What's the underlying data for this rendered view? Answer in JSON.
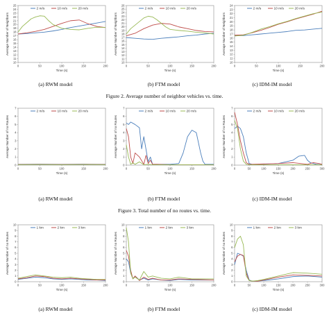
{
  "captions": {
    "fig2": "Figure 2.    Average number of neighbor vehicles vs. time.",
    "fig3": "Figure 3.    Total number of no routes vs. time.",
    "row1": [
      "(a) RWM model",
      "(b) FTM model",
      "(c) IDM-IM model"
    ],
    "row2": [
      "(a) RWM model",
      "(b) FTM model",
      "(c) IDM-IM model"
    ],
    "row3": [
      "(a) RWM model",
      "(b) FTM model",
      "(c) IDM-IM model"
    ]
  },
  "colors": {
    "s1": "#4a7ebb",
    "s2": "#be4b48",
    "s3": "#98b954"
  },
  "chart_data": [
    {
      "id": "r1a",
      "type": "line",
      "xlabel": "Time (s)",
      "ylabel": "Average Number of Neighbors",
      "xlim": [
        0,
        200
      ],
      "ylim": [
        10,
        25
      ],
      "xticks": [
        0,
        50,
        100,
        150,
        200
      ],
      "yticks": [
        10,
        11,
        12,
        13,
        14,
        15,
        16,
        17,
        18,
        19,
        20,
        21,
        22,
        23,
        24,
        25
      ],
      "series": [
        {
          "name": "2 m/s",
          "x": [
            0,
            20,
            40,
            60,
            80,
            100,
            120,
            140,
            160,
            180,
            200
          ],
          "y": [
            17.5,
            17.6,
            17.8,
            18.0,
            18.3,
            18.7,
            19.2,
            19.6,
            20.0,
            20.4,
            20.8
          ]
        },
        {
          "name": "10 m/s",
          "x": [
            0,
            20,
            40,
            60,
            80,
            100,
            120,
            140,
            160,
            180,
            200
          ],
          "y": [
            17.5,
            17.8,
            18.2,
            18.7,
            19.5,
            20.3,
            21.0,
            21.2,
            20.2,
            19.5,
            19.2
          ]
        },
        {
          "name": "20 m/s",
          "x": [
            0,
            10,
            20,
            30,
            40,
            50,
            60,
            70,
            80,
            100,
            120,
            140,
            160,
            180,
            200
          ],
          "y": [
            18.0,
            19.5,
            20.5,
            21.5,
            22.0,
            22.3,
            22.2,
            21.0,
            20.0,
            19.0,
            18.7,
            18.6,
            19.0,
            19.3,
            19.2
          ]
        }
      ]
    },
    {
      "id": "r1b",
      "type": "line",
      "xlabel": "Time (s)",
      "ylabel": "Average Number of Neighbors",
      "xlim": [
        0,
        200
      ],
      "ylim": [
        10,
        26
      ],
      "xticks": [
        0,
        50,
        100,
        150,
        200
      ],
      "yticks": [
        10,
        11,
        12,
        13,
        14,
        15,
        16,
        17,
        18,
        19,
        20,
        21,
        22,
        23,
        24,
        25,
        26
      ],
      "series": [
        {
          "name": "2 m/s",
          "x": [
            0,
            20,
            40,
            60,
            80,
            100,
            120,
            140,
            160,
            180,
            200
          ],
          "y": [
            17.0,
            16.8,
            16.6,
            16.5,
            16.8,
            17.0,
            17.2,
            17.5,
            17.7,
            18.0,
            18.2
          ]
        },
        {
          "name": "10 m/s",
          "x": [
            0,
            20,
            40,
            60,
            80,
            100,
            120,
            140,
            160,
            180,
            200
          ],
          "y": [
            17.5,
            18.2,
            19.5,
            20.5,
            21.0,
            20.8,
            20.0,
            19.5,
            19.0,
            18.7,
            18.6
          ]
        },
        {
          "name": "20 m/s",
          "x": [
            0,
            10,
            20,
            30,
            40,
            50,
            60,
            70,
            80,
            90,
            100,
            120,
            140,
            160,
            180,
            200
          ],
          "y": [
            18.0,
            19.5,
            20.5,
            21.5,
            22.5,
            23.0,
            22.8,
            22.0,
            21.0,
            20.0,
            19.3,
            19.0,
            18.8,
            18.5,
            18.3,
            18.0
          ]
        }
      ]
    },
    {
      "id": "r1c",
      "type": "line",
      "xlabel": "Time (s)",
      "ylabel": "Average Number of Neighbors",
      "xlim": [
        0,
        200
      ],
      "ylim": [
        10,
        24
      ],
      "xticks": [
        0,
        50,
        100,
        150,
        200
      ],
      "yticks": [
        10,
        11,
        12,
        13,
        14,
        15,
        16,
        17,
        18,
        19,
        20,
        21,
        22,
        23,
        24
      ],
      "series": [
        {
          "name": "2 m/s",
          "x": [
            0,
            20,
            40,
            60,
            80,
            100,
            120,
            140,
            160,
            180,
            200
          ],
          "y": [
            16.6,
            16.6,
            16.8,
            17.0,
            17.2,
            17.4,
            17.6,
            17.9,
            18.0,
            18.2,
            18.4
          ]
        },
        {
          "name": "10 m/s",
          "x": [
            0,
            20,
            40,
            60,
            80,
            100,
            120,
            140,
            160,
            180,
            200
          ],
          "y": [
            16.7,
            16.8,
            17.3,
            17.9,
            18.6,
            19.4,
            20.0,
            20.7,
            21.3,
            21.9,
            22.6
          ]
        },
        {
          "name": "20 m/s",
          "x": [
            0,
            20,
            40,
            60,
            80,
            100,
            120,
            140,
            160,
            180,
            200
          ],
          "y": [
            16.5,
            16.7,
            17.4,
            18.2,
            18.8,
            19.5,
            20.1,
            20.8,
            21.4,
            22.0,
            22.4
          ]
        }
      ]
    },
    {
      "id": "r2a",
      "type": "line",
      "xlabel": "Time (s)",
      "ylabel": "Average Number of no Routes",
      "xlim": [
        0,
        200
      ],
      "ylim": [
        0,
        7
      ],
      "xticks": [
        0,
        50,
        100,
        150,
        200
      ],
      "yticks": [
        0,
        1,
        2,
        3,
        4,
        5,
        6,
        7
      ],
      "series": [
        {
          "name": "2 m/s",
          "x": [
            0,
            50,
            100,
            150,
            200
          ],
          "y": [
            0.1,
            0.12,
            0.1,
            0.12,
            0.1
          ]
        },
        {
          "name": "10 m/s",
          "x": [
            0,
            50,
            100,
            150,
            200
          ],
          "y": [
            0.08,
            0.1,
            0.08,
            0.1,
            0.08
          ]
        },
        {
          "name": "20 m/s",
          "x": [
            0,
            50,
            100,
            150,
            200
          ],
          "y": [
            0.06,
            0.08,
            0.06,
            0.08,
            0.06
          ]
        }
      ]
    },
    {
      "id": "r2b",
      "type": "line",
      "xlabel": "Time (s)",
      "ylabel": "Average Number of no Routes",
      "xlim": [
        0,
        200
      ],
      "ylim": [
        0,
        7
      ],
      "xticks": [
        0,
        50,
        100,
        150,
        200
      ],
      "yticks": [
        0,
        1,
        2,
        3,
        4,
        5,
        6,
        7
      ],
      "series": [
        {
          "name": "2 m/s",
          "x": [
            0,
            5,
            10,
            20,
            30,
            35,
            40,
            50,
            55,
            60,
            70,
            100,
            120,
            130,
            140,
            150,
            160,
            170,
            175,
            180,
            200
          ],
          "y": [
            5.2,
            5.0,
            5.3,
            5.0,
            4.6,
            2.0,
            3.5,
            0.4,
            1.0,
            0.1,
            0.1,
            0.1,
            0.2,
            1.5,
            3.5,
            4.3,
            4.0,
            1.5,
            0.5,
            0.1,
            0.1
          ]
        },
        {
          "name": "10 m/s",
          "x": [
            0,
            5,
            10,
            15,
            20,
            30,
            40,
            45,
            50,
            55,
            60,
            70,
            100,
            200
          ],
          "y": [
            4.5,
            3.5,
            1.0,
            0.2,
            1.5,
            1.0,
            0.1,
            1.2,
            0.2,
            0.6,
            0.1,
            0.1,
            0.05,
            0.05
          ]
        },
        {
          "name": "20 m/s",
          "x": [
            0,
            5,
            10,
            15,
            20,
            30,
            40,
            50,
            60,
            200
          ],
          "y": [
            2.5,
            1.0,
            0.1,
            0.3,
            0.1,
            0.4,
            0.05,
            0.1,
            0.05,
            0.05
          ]
        }
      ]
    },
    {
      "id": "r2c",
      "type": "line",
      "xlabel": "Time (s)",
      "ylabel": "Average Number of no Routes",
      "xlim": [
        0,
        300
      ],
      "ylim": [
        0,
        7
      ],
      "xticks": [
        0,
        50,
        100,
        150,
        200,
        250,
        300
      ],
      "yticks": [
        0,
        1,
        2,
        3,
        4,
        5,
        6,
        7
      ],
      "series": [
        {
          "name": "2 m/s",
          "x": [
            0,
            10,
            20,
            30,
            40,
            50,
            60,
            80,
            150,
            200,
            220,
            240,
            250,
            260,
            280,
            300
          ],
          "y": [
            4.5,
            4.8,
            4.5,
            3.5,
            1.5,
            0.2,
            0.1,
            0.1,
            0.2,
            0.6,
            1.1,
            1.2,
            0.6,
            0.3,
            0.1,
            0.05
          ]
        },
        {
          "name": "10 m/s",
          "x": [
            0,
            10,
            20,
            30,
            40,
            50,
            60,
            150,
            200,
            250,
            270,
            290,
            300
          ],
          "y": [
            6.5,
            5.0,
            3.0,
            1.5,
            0.3,
            0.1,
            0.1,
            0.2,
            0.3,
            0.1,
            0.3,
            0.2,
            0.1
          ]
        },
        {
          "name": "20 m/s",
          "x": [
            0,
            10,
            20,
            30,
            40,
            50,
            300
          ],
          "y": [
            5.5,
            4.5,
            2.0,
            0.5,
            0.1,
            0.05,
            0.05
          ]
        }
      ]
    },
    {
      "id": "r3a",
      "type": "line",
      "xlabel": "Time (s)",
      "ylabel": "Average Number of no Routes",
      "xlim": [
        0,
        200
      ],
      "ylim": [
        0,
        10
      ],
      "xticks": [
        0,
        50,
        100,
        150,
        200
      ],
      "yticks": [
        0,
        1,
        2,
        3,
        4,
        5,
        6,
        7,
        8,
        9,
        10
      ],
      "series": [
        {
          "name": "1 km",
          "x": [
            0,
            20,
            40,
            60,
            80,
            100,
            120,
            140,
            160,
            180,
            200
          ],
          "y": [
            0.4,
            0.6,
            0.8,
            0.7,
            0.5,
            0.4,
            0.5,
            0.4,
            0.3,
            0.3,
            0.2
          ]
        },
        {
          "name": "2 km",
          "x": [
            0,
            20,
            40,
            60,
            80,
            100,
            120,
            140,
            160,
            180,
            200
          ],
          "y": [
            0.5,
            0.7,
            1.0,
            0.9,
            0.6,
            0.5,
            0.6,
            0.5,
            0.4,
            0.3,
            0.3
          ]
        },
        {
          "name": "3 km",
          "x": [
            0,
            20,
            40,
            60,
            80,
            100,
            120,
            140,
            160,
            180,
            200
          ],
          "y": [
            0.6,
            0.9,
            1.2,
            1.0,
            0.8,
            0.7,
            0.8,
            0.6,
            0.5,
            0.4,
            0.4
          ]
        }
      ]
    },
    {
      "id": "r3b",
      "type": "line",
      "xlabel": "Time (s)",
      "ylabel": "Average Number of no Routes",
      "xlim": [
        0,
        200
      ],
      "ylim": [
        0,
        10
      ],
      "xticks": [
        0,
        50,
        100,
        150,
        200
      ],
      "yticks": [
        0,
        1,
        2,
        3,
        4,
        5,
        6,
        7,
        8,
        9,
        10
      ],
      "series": [
        {
          "name": "1 km",
          "x": [
            0,
            5,
            10,
            15,
            20,
            30,
            40,
            50,
            60,
            80,
            100,
            120,
            150,
            200
          ],
          "y": [
            4.0,
            3.5,
            1.5,
            0.5,
            1.0,
            0.3,
            0.6,
            0.3,
            0.5,
            0.3,
            0.2,
            0.4,
            0.3,
            0.3
          ]
        },
        {
          "name": "2 km",
          "x": [
            0,
            5,
            10,
            15,
            20,
            30,
            40,
            50,
            60,
            80,
            100,
            120,
            150,
            200
          ],
          "y": [
            5.5,
            4.5,
            2.0,
            0.5,
            1.0,
            0.2,
            0.8,
            0.4,
            0.6,
            0.3,
            0.3,
            0.5,
            0.4,
            0.3
          ]
        },
        {
          "name": "3 km",
          "x": [
            0,
            5,
            10,
            15,
            20,
            30,
            40,
            50,
            60,
            80,
            100,
            120,
            150,
            200
          ],
          "y": [
            9.5,
            7.0,
            1.5,
            0.5,
            0.8,
            0.3,
            1.8,
            0.8,
            1.0,
            0.6,
            0.5,
            0.8,
            0.5,
            0.5
          ]
        }
      ]
    },
    {
      "id": "r3c",
      "type": "line",
      "xlabel": "Time (s)",
      "ylabel": "Average Number of no Routes",
      "xlim": [
        0,
        300
      ],
      "ylim": [
        0,
        10
      ],
      "xticks": [
        0,
        50,
        100,
        150,
        200,
        250,
        300
      ],
      "yticks": [
        0,
        1,
        2,
        3,
        4,
        5,
        6,
        7,
        8,
        9,
        10
      ],
      "series": [
        {
          "name": "1 km",
          "x": [
            0,
            10,
            20,
            30,
            40,
            50,
            60,
            80,
            100,
            150,
            200,
            250,
            300
          ],
          "y": [
            3.0,
            5.0,
            4.8,
            4.5,
            2.0,
            0.3,
            0.1,
            0.1,
            0.2,
            0.5,
            0.9,
            1.0,
            0.8
          ]
        },
        {
          "name": "2 km",
          "x": [
            0,
            10,
            20,
            30,
            40,
            50,
            60,
            80,
            100,
            150,
            200,
            250,
            300
          ],
          "y": [
            3.5,
            4.5,
            4.8,
            4.6,
            1.5,
            0.2,
            0.1,
            0.1,
            0.3,
            0.8,
            1.2,
            1.1,
            1.0
          ]
        },
        {
          "name": "3 km",
          "x": [
            0,
            10,
            20,
            30,
            40,
            50,
            60,
            80,
            100,
            150,
            200,
            250,
            300
          ],
          "y": [
            6.0,
            7.5,
            8.0,
            6.5,
            1.0,
            0.2,
            0.1,
            0.2,
            0.4,
            1.0,
            1.6,
            1.5,
            1.3
          ]
        }
      ]
    }
  ]
}
